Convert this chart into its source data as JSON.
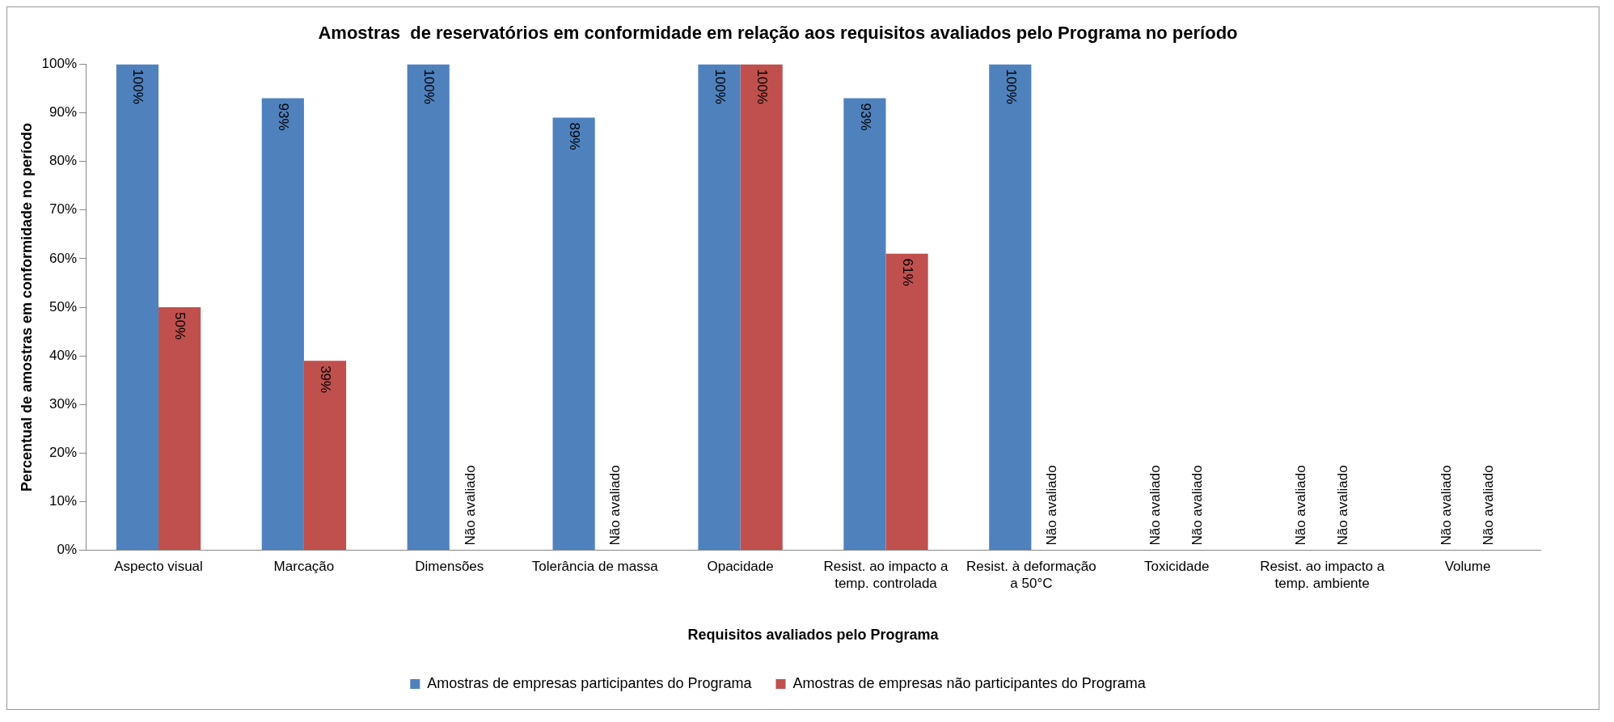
{
  "chart_data": {
    "type": "bar",
    "title": "Amostras  de reservatórios em conformidade em relação aos requisitos avaliados pelo Programa no período",
    "xlabel": "Requisitos avaliados pelo Programa",
    "ylabel": "Percentual de amostras em conformidade no período",
    "categories": [
      "Aspecto visual",
      "Marcação",
      "Dimensões",
      "Tolerância de massa",
      "Opacidade",
      "Resist. ao impacto a temp. controlada",
      "Resist. à deformação a 50°C",
      "Toxicidade",
      "Resist. ao impacto a temp. ambiente",
      "Volume"
    ],
    "series": [
      {
        "name": "Amostras de empresas participantes do Programa",
        "color": "#4f81bd",
        "values": [
          100,
          93,
          100,
          89,
          100,
          93,
          100,
          null,
          null,
          null
        ],
        "value_labels": [
          "100%",
          "93%",
          "100%",
          "89%",
          "100%",
          "93%",
          "100%",
          "Não avaliado",
          "Não avaliado",
          "Não avaliado"
        ]
      },
      {
        "name": "Amostras de empresas não participantes do Programa",
        "color": "#c0504d",
        "values": [
          50,
          39,
          null,
          null,
          100,
          61,
          null,
          null,
          null,
          null
        ],
        "value_labels": [
          "50%",
          "39%",
          "Não avaliado",
          "Não avaliado",
          "100%",
          "61%",
          "Não avaliado",
          "Não avaliado",
          "Não avaliado",
          "Não avaliado"
        ]
      }
    ],
    "ylim": [
      0,
      100
    ],
    "yticks": [
      {
        "value": 0,
        "label": "0%"
      },
      {
        "value": 10,
        "label": "10%"
      },
      {
        "value": 20,
        "label": "20%"
      },
      {
        "value": 30,
        "label": "30%"
      },
      {
        "value": 40,
        "label": "40%"
      },
      {
        "value": 50,
        "label": "50%"
      },
      {
        "value": 60,
        "label": "60%"
      },
      {
        "value": 70,
        "label": "70%"
      },
      {
        "value": 80,
        "label": "80%"
      },
      {
        "value": 90,
        "label": "90%"
      },
      {
        "value": 100,
        "label": "100%"
      }
    ],
    "grid": false,
    "legend": "bottom"
  }
}
